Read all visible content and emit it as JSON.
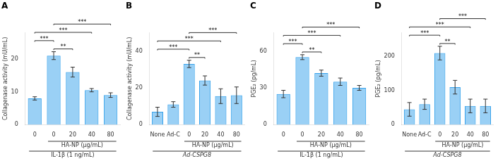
{
  "chart_data": [
    {
      "type": "bar",
      "title": "A",
      "ylabel": "Collagenase activity (mU/mL)",
      "categories": [
        "0",
        "0",
        "20",
        "40",
        "80"
      ],
      "values": [
        8.0,
        21.0,
        16.0,
        10.5,
        9.0
      ],
      "errors": [
        0.5,
        1.2,
        1.5,
        0.5,
        0.7
      ],
      "groups": [
        {
          "label": "HA-NP (μg/mL)",
          "bars": [
            1,
            2,
            3,
            4
          ],
          "italic": false
        },
        {
          "label": "IL-1β (1 ng/mL)",
          "bars": [
            0,
            1,
            2,
            3,
            4
          ],
          "italic": false
        }
      ],
      "brackets": [
        {
          "bar1": 0,
          "bar2": 1,
          "label": "***",
          "level": 1
        },
        {
          "bar1": 1,
          "bar2": 2,
          "label": "**",
          "level": 0
        },
        {
          "bar1": 0,
          "bar2": 3,
          "label": "***",
          "level": 2
        },
        {
          "bar1": 1,
          "bar2": 4,
          "label": "***",
          "level": 3
        }
      ],
      "ylim": [
        0,
        28
      ],
      "yticks": [
        0,
        10,
        20
      ],
      "grid": false
    },
    {
      "type": "bar",
      "title": "B",
      "ylabel": "Collagenase activity (mU/mL)",
      "categories": [
        "None",
        "Ad-C",
        "0",
        "20",
        "40",
        "80"
      ],
      "values": [
        7.0,
        11.0,
        33.0,
        24.0,
        15.5,
        16.0
      ],
      "errors": [
        2.5,
        1.5,
        2.0,
        2.5,
        4.0,
        4.5
      ],
      "groups": [
        {
          "label": "HA-NP (μg/mL)",
          "bars": [
            2,
            3,
            4,
            5
          ],
          "italic": false
        },
        {
          "label": "Ad-CSPG8",
          "bars": [
            0,
            1,
            2,
            3,
            4,
            5
          ],
          "italic": true
        }
      ],
      "brackets": [
        {
          "bar1": 0,
          "bar2": 2,
          "label": "***",
          "level": 1
        },
        {
          "bar1": 2,
          "bar2": 3,
          "label": "**",
          "level": 0
        },
        {
          "bar1": 0,
          "bar2": 4,
          "label": "***",
          "level": 2
        },
        {
          "bar1": 2,
          "bar2": 5,
          "label": "***",
          "level": 3
        }
      ],
      "ylim": [
        0,
        50
      ],
      "yticks": [
        0,
        20,
        40
      ],
      "grid": false
    },
    {
      "type": "bar",
      "title": "C",
      "ylabel": "PGE₂ (pg/mL)",
      "categories": [
        "0",
        "0",
        "20",
        "40",
        "80"
      ],
      "values": [
        25.0,
        55.0,
        42.0,
        35.0,
        30.0
      ],
      "errors": [
        3.0,
        2.0,
        2.5,
        3.0,
        2.0
      ],
      "groups": [
        {
          "label": "HA-NP (μg/mL)",
          "bars": [
            1,
            2,
            3,
            4
          ],
          "italic": false
        },
        {
          "label": "IL-1β (1 ng/mL)",
          "bars": [
            0,
            1,
            2,
            3,
            4
          ],
          "italic": false
        }
      ],
      "brackets": [
        {
          "bar1": 0,
          "bar2": 1,
          "label": "***",
          "level": 1
        },
        {
          "bar1": 1,
          "bar2": 2,
          "label": "**",
          "level": 0
        },
        {
          "bar1": 0,
          "bar2": 3,
          "label": "***",
          "level": 2
        },
        {
          "bar1": 1,
          "bar2": 4,
          "label": "***",
          "level": 3
        }
      ],
      "ylim": [
        0,
        75
      ],
      "yticks": [
        0,
        30,
        60
      ],
      "grid": false
    },
    {
      "type": "bar",
      "title": "D",
      "ylabel": "PGE₂ (pg/mL)",
      "categories": [
        "None",
        "Ad-C",
        "0",
        "20",
        "40",
        "80"
      ],
      "values": [
        45.0,
        60.0,
        210.0,
        110.0,
        55.0,
        55.0
      ],
      "errors": [
        20.0,
        15.0,
        20.0,
        20.0,
        20.0,
        20.0
      ],
      "groups": [
        {
          "label": "HA-NP (μg/mL)",
          "bars": [
            2,
            3,
            4,
            5
          ],
          "italic": false
        },
        {
          "label": "Ad-CSPG8",
          "bars": [
            0,
            1,
            2,
            3,
            4,
            5
          ],
          "italic": true
        }
      ],
      "brackets": [
        {
          "bar1": 0,
          "bar2": 2,
          "label": "***",
          "level": 1
        },
        {
          "bar1": 2,
          "bar2": 3,
          "label": "**",
          "level": 0
        },
        {
          "bar1": 0,
          "bar2": 4,
          "label": "***",
          "level": 2
        },
        {
          "bar1": 2,
          "bar2": 5,
          "label": "***",
          "level": 3
        }
      ],
      "ylim": [
        0,
        270
      ],
      "yticks": [
        0,
        100,
        200
      ],
      "grid": false
    }
  ]
}
